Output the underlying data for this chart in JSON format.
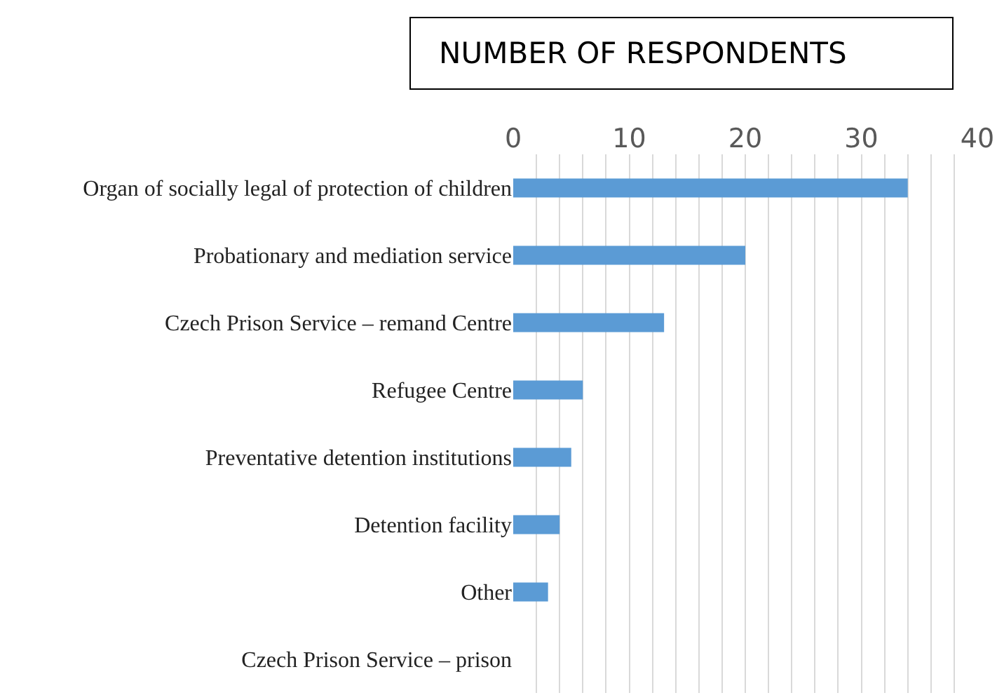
{
  "chart_data": {
    "type": "bar",
    "orientation": "horizontal",
    "title": "NUMBER OF RESPONDENTS",
    "categories": [
      "Organ of socially legal of protection of children",
      "Probationary and mediation service",
      "Czech Prison Service – remand Centre",
      "Refugee Centre",
      "Preventative detention institutions",
      "Detention facility",
      "Other",
      "Czech Prison Service – prison"
    ],
    "values": [
      34,
      20,
      13,
      6,
      5,
      4,
      3,
      0
    ],
    "color": "#5b9bd5",
    "xlim": [
      0,
      40
    ],
    "xticks": [
      0,
      {
        "value": 2,
        "label": null
      },
      {
        "value": 4,
        "label": null
      },
      {
        "value": 6,
        "label": null
      },
      {
        "value": 8,
        "label": null
      },
      10,
      {
        "value": 12,
        "label": null
      },
      {
        "value": 14,
        "label": null
      },
      {
        "value": 16,
        "label": null
      },
      {
        "value": 18,
        "label": null
      },
      20,
      {
        "value": 22,
        "label": null
      },
      {
        "value": 24,
        "label": null
      },
      {
        "value": 26,
        "label": null
      },
      {
        "value": 28,
        "label": null
      },
      30,
      {
        "value": 32,
        "label": null
      },
      {
        "value": 34,
        "label": null
      },
      {
        "value": 36,
        "label": null
      },
      {
        "value": 38,
        "label": null
      },
      40
    ],
    "grid": "x"
  }
}
